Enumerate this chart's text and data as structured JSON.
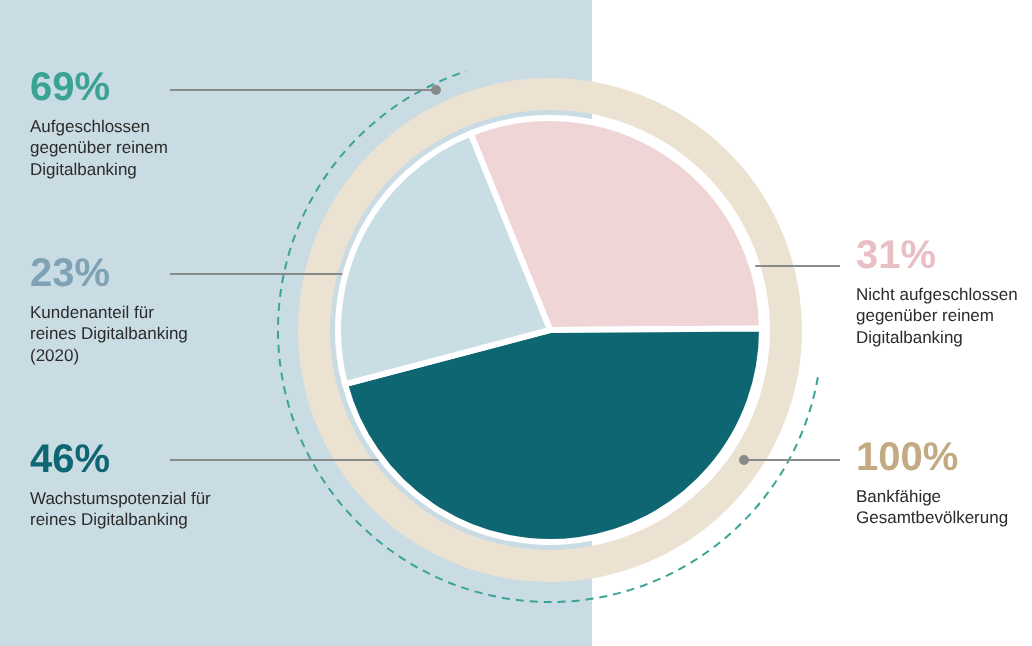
{
  "chart_data": {
    "type": "pie",
    "categories": [
      "Nicht aufgeschlossen gegenüber reinem Digitalbanking",
      "Wachstumspotenzial für reines Digitalbanking",
      "Kundenanteil für reines Digitalbanking (2020)"
    ],
    "values": [
      31,
      46,
      23
    ],
    "colors": [
      "#f0d5d7",
      "#0f6673",
      "#c9dde5"
    ],
    "value_labels": [
      "31%",
      "46%",
      "23%"
    ],
    "annotations": [
      "69%",
      "Aufgeschlossen gegenüber reinem Digitalbanking",
      "100%",
      "Bankfähige Gesamtbevölkerung"
    ]
  }
}
